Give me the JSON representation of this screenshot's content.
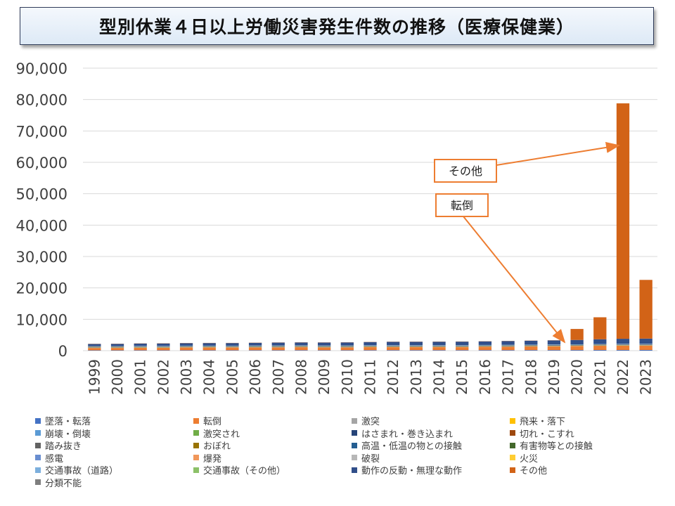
{
  "chart_data": {
    "type": "bar",
    "stacked": true,
    "title": "型別休業４日以上労働災害発生件数の推移（医療保健業）",
    "categories": [
      "1999",
      "2000",
      "2001",
      "2002",
      "2003",
      "2004",
      "2005",
      "2006",
      "2007",
      "2008",
      "2009",
      "2010",
      "2011",
      "2012",
      "2013",
      "2014",
      "2015",
      "2016",
      "2017",
      "2018",
      "2019",
      "2020",
      "2021",
      "2022",
      "2023"
    ],
    "ylim": [
      0,
      90000
    ],
    "yticks": [
      "0",
      "10,000",
      "20,000",
      "30,000",
      "40,000",
      "50,000",
      "60,000",
      "70,000",
      "80,000",
      "90,000"
    ],
    "grid": true,
    "legend_position": "bottom",
    "series": [
      {
        "name": "墜落・転落",
        "color": "#4472c4",
        "values": [
          120,
          120,
          130,
          130,
          140,
          140,
          140,
          150,
          150,
          160,
          150,
          150,
          160,
          170,
          170,
          170,
          170,
          180,
          180,
          190,
          190,
          200,
          210,
          210,
          220
        ]
      },
      {
        "name": "転倒",
        "color": "#ed7d31",
        "values": [
          750,
          760,
          800,
          800,
          850,
          860,
          850,
          900,
          920,
          950,
          900,
          920,
          980,
          1000,
          1000,
          1000,
          1000,
          1050,
          1100,
          1150,
          1200,
          1250,
          1350,
          1400,
          1400
        ]
      },
      {
        "name": "激突",
        "color": "#a5a5a5",
        "values": [
          60,
          60,
          60,
          60,
          60,
          60,
          60,
          60,
          60,
          60,
          60,
          60,
          60,
          60,
          60,
          60,
          60,
          60,
          60,
          60,
          60,
          60,
          60,
          60,
          60
        ]
      },
      {
        "name": "飛来・落下",
        "color": "#ffc000",
        "values": [
          40,
          40,
          40,
          40,
          40,
          40,
          40,
          40,
          40,
          40,
          40,
          40,
          40,
          40,
          40,
          40,
          40,
          40,
          40,
          40,
          40,
          40,
          40,
          40,
          40
        ]
      },
      {
        "name": "崩壊・倒壊",
        "color": "#5b9bd5",
        "values": [
          15,
          15,
          15,
          15,
          15,
          15,
          15,
          15,
          15,
          15,
          15,
          15,
          15,
          15,
          15,
          15,
          15,
          15,
          15,
          15,
          15,
          15,
          15,
          15,
          15
        ]
      },
      {
        "name": "激突され",
        "color": "#70ad47",
        "values": [
          70,
          70,
          70,
          70,
          70,
          70,
          70,
          70,
          70,
          70,
          70,
          70,
          70,
          70,
          70,
          70,
          70,
          70,
          70,
          70,
          70,
          70,
          70,
          70,
          70
        ]
      },
      {
        "name": "はさまれ・巻き込まれ",
        "color": "#264478",
        "values": [
          90,
          90,
          90,
          90,
          90,
          90,
          90,
          90,
          90,
          90,
          90,
          90,
          90,
          90,
          90,
          90,
          90,
          90,
          90,
          90,
          90,
          90,
          90,
          90,
          90
        ]
      },
      {
        "name": "切れ・こすれ",
        "color": "#9e480e",
        "values": [
          80,
          80,
          80,
          80,
          80,
          80,
          80,
          80,
          80,
          80,
          80,
          80,
          80,
          80,
          80,
          80,
          80,
          80,
          80,
          80,
          80,
          80,
          80,
          80,
          80
        ]
      },
      {
        "name": "踏み抜き",
        "color": "#636363",
        "values": [
          5,
          5,
          5,
          5,
          5,
          5,
          5,
          5,
          5,
          5,
          5,
          5,
          5,
          5,
          5,
          5,
          5,
          5,
          5,
          5,
          5,
          5,
          5,
          5,
          5
        ]
      },
      {
        "name": "おぼれ",
        "color": "#997300",
        "values": [
          0,
          0,
          0,
          0,
          0,
          0,
          0,
          0,
          0,
          0,
          0,
          0,
          0,
          0,
          0,
          0,
          0,
          0,
          0,
          0,
          0,
          0,
          0,
          0,
          0
        ]
      },
      {
        "name": "高温・低温の物との接触",
        "color": "#255e91",
        "values": [
          40,
          40,
          40,
          40,
          40,
          40,
          40,
          40,
          40,
          40,
          40,
          40,
          40,
          40,
          40,
          40,
          40,
          40,
          40,
          40,
          40,
          40,
          40,
          40,
          40
        ]
      },
      {
        "name": "有害物等との接触",
        "color": "#43682b",
        "values": [
          40,
          40,
          40,
          40,
          40,
          40,
          40,
          40,
          40,
          40,
          40,
          40,
          40,
          40,
          40,
          40,
          40,
          40,
          40,
          40,
          40,
          40,
          40,
          40,
          40
        ]
      },
      {
        "name": "感電",
        "color": "#698ed0",
        "values": [
          2,
          2,
          2,
          2,
          2,
          2,
          2,
          2,
          2,
          2,
          2,
          2,
          2,
          2,
          2,
          2,
          2,
          2,
          2,
          2,
          2,
          2,
          2,
          2,
          2
        ]
      },
      {
        "name": "爆発",
        "color": "#f1975a",
        "values": [
          1,
          1,
          1,
          1,
          1,
          1,
          1,
          1,
          1,
          1,
          1,
          1,
          1,
          1,
          1,
          1,
          1,
          1,
          1,
          1,
          1,
          1,
          1,
          1,
          1
        ]
      },
      {
        "name": "破裂",
        "color": "#b7b7b7",
        "values": [
          2,
          2,
          2,
          2,
          2,
          2,
          2,
          2,
          2,
          2,
          2,
          2,
          2,
          2,
          2,
          2,
          2,
          2,
          2,
          2,
          2,
          2,
          2,
          2,
          2
        ]
      },
      {
        "name": "火災",
        "color": "#ffcd33",
        "values": [
          1,
          1,
          1,
          1,
          1,
          1,
          1,
          1,
          1,
          1,
          1,
          1,
          1,
          1,
          1,
          1,
          1,
          1,
          1,
          1,
          1,
          1,
          1,
          1,
          1
        ]
      },
      {
        "name": "交通事故（道路）",
        "color": "#7cafdd",
        "values": [
          130,
          130,
          140,
          140,
          140,
          140,
          140,
          150,
          150,
          150,
          140,
          140,
          140,
          140,
          140,
          140,
          140,
          140,
          140,
          140,
          130,
          120,
          130,
          130,
          130
        ]
      },
      {
        "name": "交通事故（その他）",
        "color": "#8cc168",
        "values": [
          3,
          3,
          3,
          3,
          3,
          3,
          3,
          3,
          3,
          3,
          3,
          3,
          3,
          3,
          3,
          3,
          3,
          3,
          3,
          3,
          3,
          3,
          3,
          3,
          3
        ]
      },
      {
        "name": "動作の反動・無理な動作",
        "color": "#314f8a",
        "values": [
          680,
          720,
          760,
          790,
          820,
          840,
          850,
          870,
          900,
          920,
          950,
          980,
          1020,
          1050,
          1080,
          1100,
          1120,
          1150,
          1200,
          1250,
          1300,
          1400,
          1500,
          1600,
          1650
        ]
      },
      {
        "name": "その他",
        "color": "#d26317",
        "values": [
          50,
          50,
          50,
          50,
          50,
          50,
          50,
          50,
          50,
          50,
          50,
          50,
          50,
          50,
          50,
          50,
          50,
          50,
          50,
          50,
          50,
          3500,
          7000,
          75000,
          18700
        ]
      },
      {
        "name": "分類不能",
        "color": "#7f7f7f",
        "values": [
          5,
          5,
          5,
          5,
          5,
          5,
          5,
          5,
          5,
          5,
          5,
          5,
          5,
          5,
          5,
          5,
          5,
          5,
          5,
          5,
          5,
          5,
          5,
          5,
          5
        ]
      }
    ],
    "annotations": [
      {
        "text": "その他",
        "points_to": "2022"
      },
      {
        "text": "転倒",
        "points_to": "2020"
      }
    ]
  }
}
